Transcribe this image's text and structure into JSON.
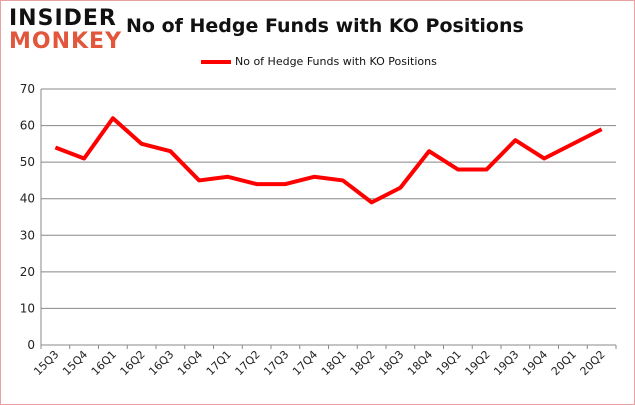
{
  "logo": {
    "line1": "INSIDER",
    "line2": "MONKEY"
  },
  "chart_data": {
    "type": "line",
    "title": "No of Hedge Funds with KO Positions",
    "categories": [
      "15Q3",
      "15Q4",
      "16Q1",
      "16Q2",
      "16Q3",
      "16Q4",
      "17Q1",
      "17Q2",
      "17Q3",
      "17Q4",
      "18Q1",
      "18Q2",
      "18Q3",
      "18Q4",
      "19Q1",
      "19Q2",
      "19Q3",
      "19Q4",
      "20Q1",
      "20Q2"
    ],
    "series": [
      {
        "name": "No of Hedge Funds with KO Positions",
        "color": "#ff0000",
        "values": [
          54,
          51,
          62,
          55,
          53,
          45,
          46,
          44,
          44,
          46,
          45,
          39,
          43,
          53,
          48,
          48,
          56,
          51,
          55,
          59
        ]
      }
    ],
    "ylim": [
      0,
      70
    ],
    "yticks": [
      0,
      10,
      20,
      30,
      40,
      50,
      60,
      70
    ],
    "grid": true,
    "legend": "top"
  }
}
